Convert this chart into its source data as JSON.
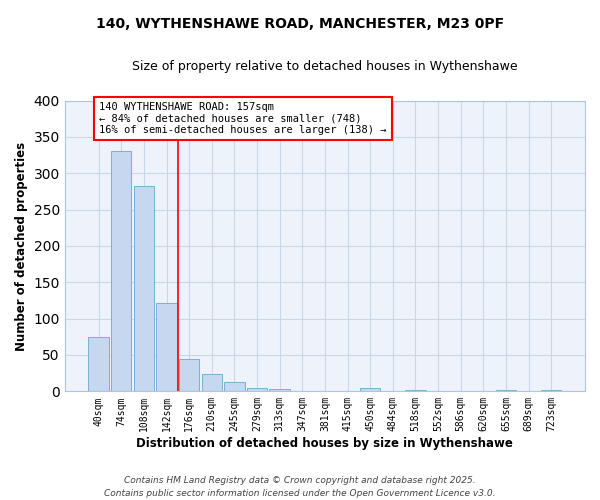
{
  "title1": "140, WYTHENSHAWE ROAD, MANCHESTER, M23 0PF",
  "title2": "Size of property relative to detached houses in Wythenshawe",
  "xlabel": "Distribution of detached houses by size in Wythenshawe",
  "ylabel": "Number of detached properties",
  "bar_labels": [
    "40sqm",
    "74sqm",
    "108sqm",
    "142sqm",
    "176sqm",
    "210sqm",
    "245sqm",
    "279sqm",
    "313sqm",
    "347sqm",
    "381sqm",
    "415sqm",
    "450sqm",
    "484sqm",
    "518sqm",
    "552sqm",
    "586sqm",
    "620sqm",
    "655sqm",
    "689sqm",
    "723sqm"
  ],
  "bar_values": [
    75,
    330,
    283,
    122,
    44,
    24,
    13,
    5,
    3,
    0,
    0,
    0,
    4,
    0,
    2,
    0,
    0,
    0,
    2,
    0,
    2
  ],
  "bar_color": "#c5d8f0",
  "bar_edgecolor": "#7aafd4",
  "grid_color": "#c8d8ec",
  "bg_color": "#eef3fb",
  "red_line_x": 3.5,
  "annotation_text": "140 WYTHENSHAWE ROAD: 157sqm\n← 84% of detached houses are smaller (748)\n16% of semi-detached houses are larger (138) →",
  "footer": "Contains HM Land Registry data © Crown copyright and database right 2025.\nContains public sector information licensed under the Open Government Licence v3.0.",
  "ylim": [
    0,
    400
  ],
  "yticks": [
    0,
    50,
    100,
    150,
    200,
    250,
    300,
    350,
    400
  ]
}
